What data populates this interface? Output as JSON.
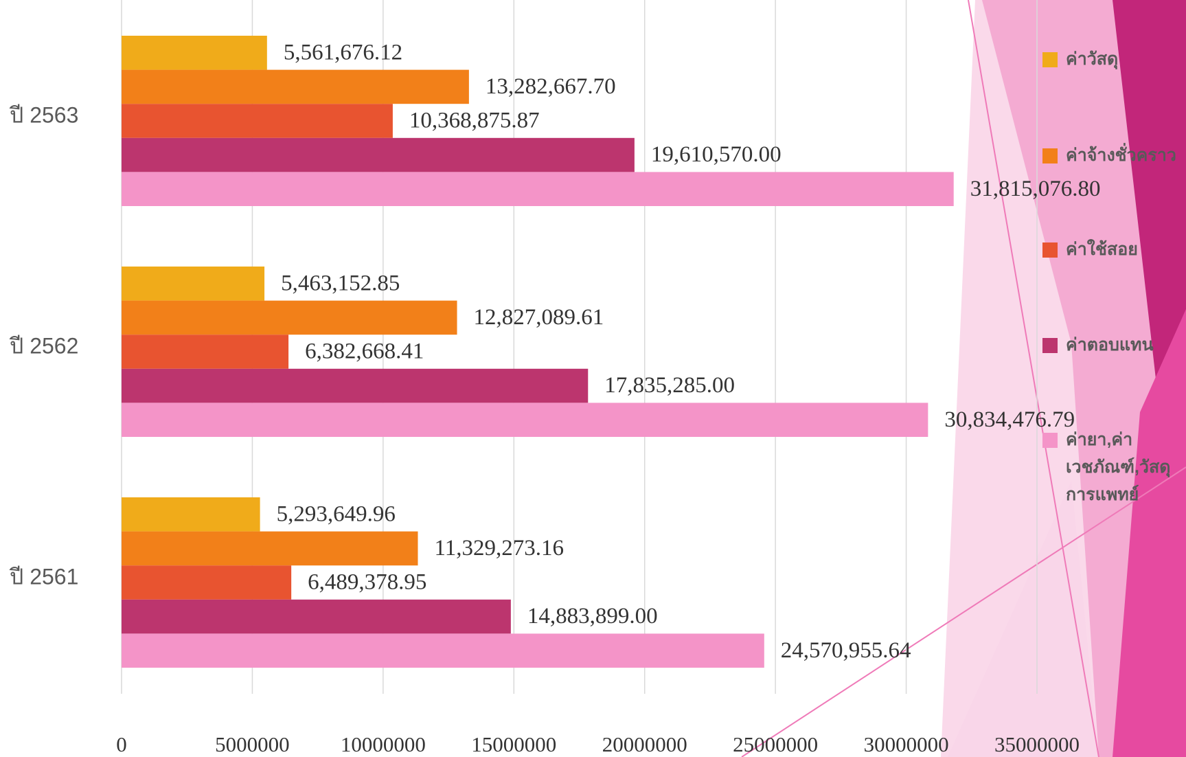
{
  "chart_data": {
    "type": "bar",
    "orientation": "horizontal",
    "categories": [
      "ปี 2563",
      "ปี 2562",
      "ปี 2561"
    ],
    "series": [
      {
        "name": "ค่าวัสดุ",
        "color": "#f0ab1a",
        "values": [
          5561676.12,
          5463152.85,
          5293649.96
        ],
        "value_labels": [
          "5,561,676.12",
          "5,463,152.85",
          "5,293,649.96"
        ]
      },
      {
        "name": "ค่าจ้างชั่วคราว",
        "color": "#f28019",
        "values": [
          13282667.7,
          12827089.61,
          11329273.16
        ],
        "value_labels": [
          "13,282,667.70",
          "12,827,089.61",
          "11,329,273.16"
        ]
      },
      {
        "name": "ค่าใช้สอย",
        "color": "#e85430",
        "values": [
          10368875.87,
          6382668.41,
          6489378.95
        ],
        "value_labels": [
          "10,368,875.87",
          "6,382,668.41",
          "6,489,378.95"
        ]
      },
      {
        "name": "ค่าตอบแทน",
        "color": "#bc356e",
        "values": [
          19610570.0,
          17835285.0,
          14883899.0
        ],
        "value_labels": [
          "19,610,570.00",
          "17,835,285.00",
          "14,883,899.00"
        ]
      },
      {
        "name": "ค่ายา,ค่าเวชภัณฑ์,วัสดุการแพทย์",
        "color": "#f494c8",
        "values": [
          31815076.8,
          30834476.79,
          24570955.64
        ],
        "value_labels": [
          "31,815,076.80",
          "30,834,476.79",
          "24,570,955.64"
        ]
      }
    ],
    "xlim": [
      0,
      35000000
    ],
    "xticks": [
      0,
      5000000,
      10000000,
      15000000,
      20000000,
      25000000,
      30000000,
      35000000
    ],
    "grid": true,
    "legend": "right"
  }
}
